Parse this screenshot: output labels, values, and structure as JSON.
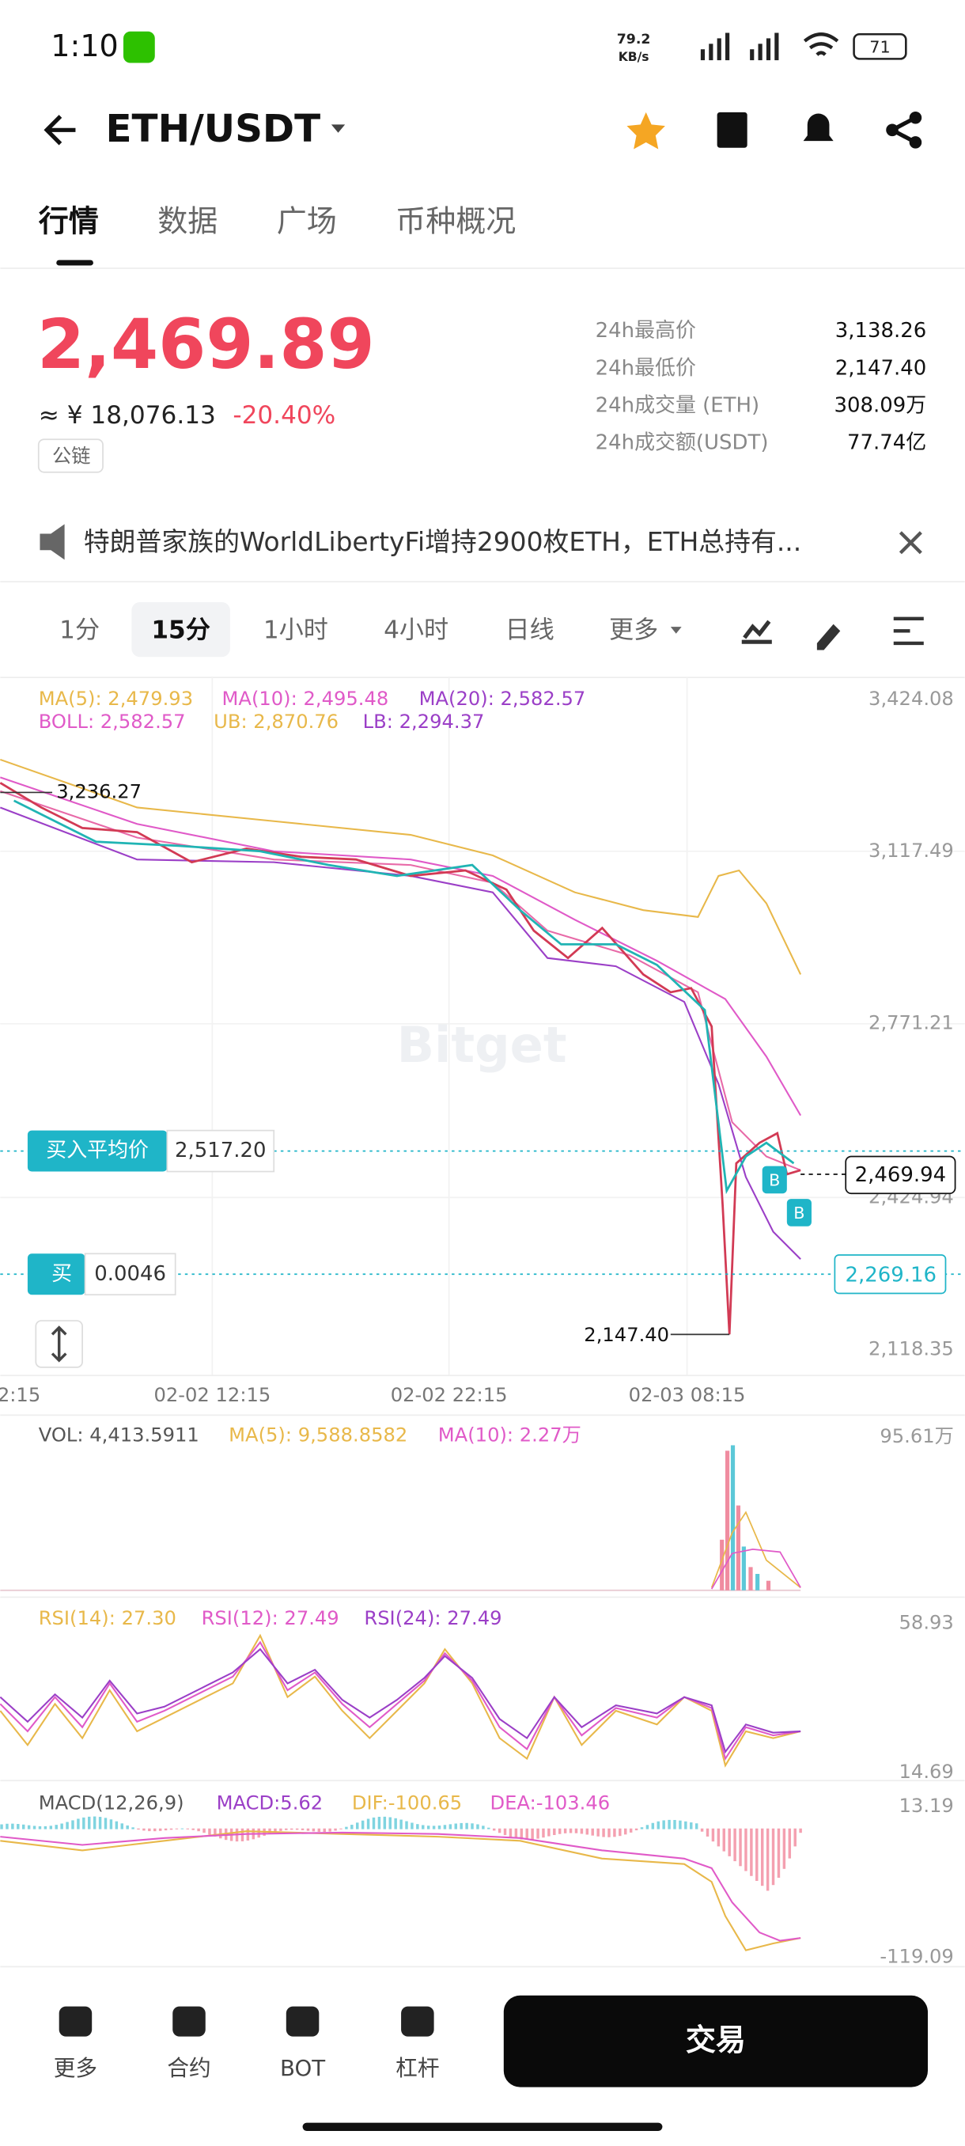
{
  "status_bar": {
    "time": "1:10",
    "net_speed": "79.2",
    "net_unit": "KB/s",
    "battery": "71"
  },
  "header": {
    "pair": "ETH/USDT"
  },
  "tabs": [
    "行情",
    "数据",
    "广场",
    "币种概况"
  ],
  "price": {
    "last": "2,469.89",
    "cny": "≈ ¥ 18,076.13",
    "change": "-20.40%",
    "tag": "公链"
  },
  "stats": [
    {
      "label": "24h最高价",
      "value": "3,138.26"
    },
    {
      "label": "24h最低价",
      "value": "2,147.40"
    },
    {
      "label": "24h成交量 (ETH)",
      "value": "308.09万"
    },
    {
      "label": "24h成交额(USDT)",
      "value": "77.74亿"
    }
  ],
  "news": "特朗普家族的WorldLibertyFi增持2900枚ETH，ETH总持有...",
  "intervals": [
    "1分",
    "15分",
    "1小时",
    "4小时",
    "日线",
    "更多"
  ],
  "kline": {
    "ma_labels": [
      "MA(5): 2,479.93",
      "MA(10): 2,495.48",
      "MA(20): 2,582.57"
    ],
    "boll_labels": [
      "BOLL: 2,582.57",
      "UB: 2,870.76",
      "LB: 2,294.37"
    ],
    "yaxis": [
      "3,424.08",
      "3,117.49",
      "2,771.21",
      "2,424.94",
      "2,118.35"
    ],
    "high_label": "3,236.27",
    "low_label": "2,147.40",
    "avg_buy": {
      "label": "买入平均价",
      "value": "2,517.20"
    },
    "current": "2,469.94",
    "order": {
      "side": "买",
      "amount": "0.0046",
      "price": "2,269.16"
    },
    "markers": [
      "B",
      "B"
    ],
    "xaxis": [
      "2:15",
      "02-02 12:15",
      "02-02 22:15",
      "02-03 08:15"
    ],
    "watermark": "Bitget"
  },
  "volume": {
    "labels": [
      "VOL: 4,413.5911",
      "MA(5): 9,588.8582",
      "MA(10): 2.27万"
    ],
    "max": "95.61万"
  },
  "rsi": {
    "labels": [
      "RSI(14): 27.30",
      "RSI(12): 27.49",
      "RSI(24): 27.49"
    ],
    "yaxis": [
      "58.93",
      "14.69"
    ]
  },
  "macd": {
    "labels": [
      "MACD(12,26,9)",
      "MACD:5.62",
      "DIF:-100.65",
      "DEA:-103.46"
    ],
    "yaxis": [
      "13.19",
      "-119.09"
    ]
  },
  "bottom_nav": [
    "更多",
    "合约",
    "BOT",
    "杠杆"
  ],
  "trade_button": "交易"
}
